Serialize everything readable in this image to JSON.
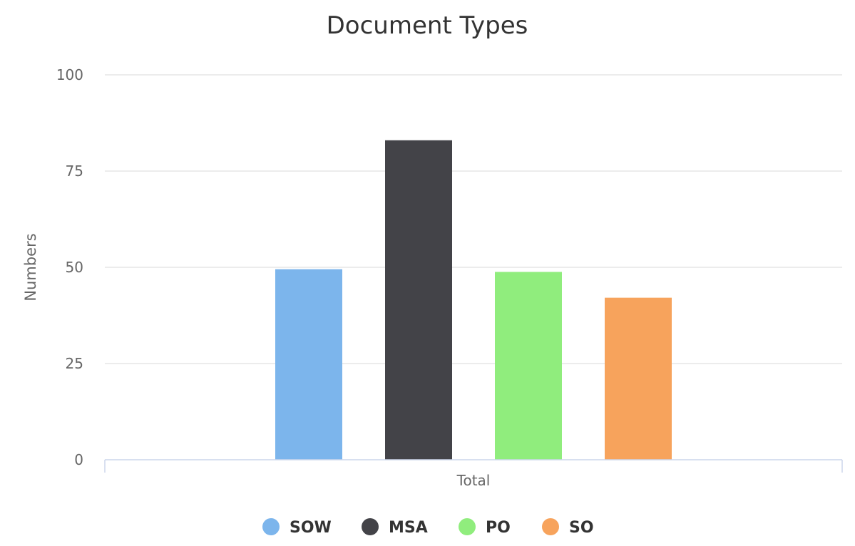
{
  "chart_data": {
    "type": "bar",
    "title": "Document Types",
    "categories": [
      "Total"
    ],
    "xlabel": "",
    "ylabel": "Numbers",
    "ylim": [
      0,
      100
    ],
    "yticks": [
      0,
      25,
      50,
      75,
      100
    ],
    "grid": true,
    "legend_position": "bottom-center",
    "series": [
      {
        "name": "SOW",
        "values": [
          49.5
        ],
        "color": "#7cb5ec"
      },
      {
        "name": "MSA",
        "values": [
          83
        ],
        "color": "#434348"
      },
      {
        "name": "PO",
        "values": [
          48.8
        ],
        "color": "#90ed7d"
      },
      {
        "name": "SO",
        "values": [
          42.1
        ],
        "color": "#f7a35c"
      }
    ]
  }
}
